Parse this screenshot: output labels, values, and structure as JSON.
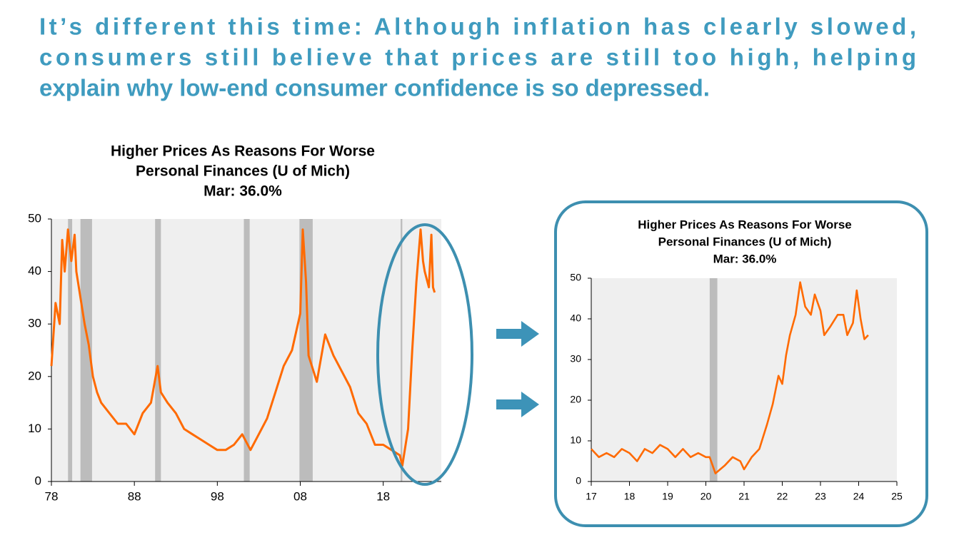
{
  "headline": [
    "It’s different this time:  Although inflation has clearly slowed,",
    "consumers still believe that prices are still too high, helping",
    "explain why low-end consumer confidence is so depressed."
  ],
  "chart_data": [
    {
      "type": "line",
      "title": [
        "Higher Prices As Reasons For Worse",
        "Personal Finances (U of Mich)",
        "Mar: 36.0%"
      ],
      "color": "#ff6a00",
      "x": [
        1978,
        1978.5,
        1979,
        1979.3,
        1979.6,
        1980,
        1980.4,
        1980.8,
        1981,
        1981.5,
        1982,
        1982.5,
        1983,
        1983.5,
        1984,
        1985,
        1986,
        1987,
        1988,
        1989,
        1990,
        1990.8,
        1991.2,
        1992,
        1993,
        1994,
        1995,
        1996,
        1997,
        1998,
        1999,
        2000,
        2001,
        2002,
        2003,
        2004,
        2005,
        2006,
        2007,
        2008,
        2008.3,
        2008.7,
        2009,
        2010,
        2011,
        2012,
        2013,
        2014,
        2015,
        2016,
        2017,
        2018,
        2019,
        2020,
        2020.3,
        2021,
        2021.5,
        2022,
        2022.5,
        2022.8,
        2023,
        2023.5,
        2023.8,
        2024,
        2024.2
      ],
      "values": [
        22,
        34,
        30,
        46,
        40,
        48,
        42,
        47,
        40,
        35,
        30,
        26,
        20,
        17,
        15,
        13,
        11,
        11,
        9,
        13,
        15,
        22,
        17,
        15,
        13,
        10,
        9,
        8,
        7,
        6,
        6,
        7,
        9,
        6,
        9,
        12,
        17,
        22,
        25,
        32,
        48,
        38,
        24,
        19,
        28,
        24,
        21,
        18,
        13,
        11,
        7,
        7,
        6,
        5,
        3,
        10,
        25,
        38,
        48,
        42,
        40,
        37,
        47,
        37,
        36
      ],
      "recessions": [
        [
          1980,
          1980.5
        ],
        [
          1981.5,
          1982.9
        ],
        [
          1990.5,
          1991.2
        ],
        [
          2001.2,
          2001.9
        ],
        [
          2007.9,
          2009.5
        ],
        [
          2020.1,
          2020.3
        ]
      ],
      "xlim": [
        1978,
        2025
      ],
      "ylim": [
        0,
        50
      ],
      "yticks": [
        0,
        10,
        20,
        30,
        40,
        50
      ],
      "xticks": [
        {
          "value": 1978,
          "label": "78"
        },
        {
          "value": 1988,
          "label": "88"
        },
        {
          "value": 1998,
          "label": "98"
        },
        {
          "value": 2008,
          "label": "08"
        },
        {
          "value": 2018,
          "label": "18"
        }
      ]
    },
    {
      "type": "line",
      "title": [
        "Higher Prices As Reasons For Worse",
        "Personal Finances (U of Mich)",
        "Mar: 36.0%"
      ],
      "color": "#ff6a00",
      "x": [
        2017,
        2017.2,
        2017.4,
        2017.6,
        2017.8,
        2018,
        2018.2,
        2018.4,
        2018.6,
        2018.8,
        2019,
        2019.2,
        2019.4,
        2019.6,
        2019.8,
        2020,
        2020.1,
        2020.25,
        2020.5,
        2020.7,
        2020.9,
        2021,
        2021.2,
        2021.4,
        2021.6,
        2021.75,
        2021.9,
        2022,
        2022.1,
        2022.2,
        2022.35,
        2022.47,
        2022.6,
        2022.75,
        2022.85,
        2023,
        2023.1,
        2023.25,
        2023.45,
        2023.6,
        2023.7,
        2023.85,
        2023.95,
        2024.05,
        2024.15,
        2024.25
      ],
      "values": [
        8,
        6,
        7,
        6,
        8,
        7,
        5,
        8,
        7,
        9,
        8,
        6,
        8,
        6,
        7,
        6,
        6,
        2,
        4,
        6,
        5,
        3,
        6,
        8,
        14,
        19,
        26,
        24,
        31,
        36,
        41,
        49,
        43,
        41,
        46,
        42,
        36,
        38,
        41,
        41,
        36,
        39,
        47,
        40,
        35,
        36
      ],
      "recessions": [
        [
          2020.1,
          2020.3
        ]
      ],
      "xlim": [
        2017,
        2025
      ],
      "ylim": [
        0,
        50
      ],
      "yticks": [
        0,
        10,
        20,
        30,
        40,
        50
      ],
      "xticks": [
        {
          "value": 2017,
          "label": "17"
        },
        {
          "value": 2018,
          "label": "18"
        },
        {
          "value": 2019,
          "label": "19"
        },
        {
          "value": 2020,
          "label": "20"
        },
        {
          "value": 2021,
          "label": "21"
        },
        {
          "value": 2022,
          "label": "22"
        },
        {
          "value": 2023,
          "label": "23"
        },
        {
          "value": 2024,
          "label": "24"
        },
        {
          "value": 2025,
          "label": "25"
        }
      ]
    }
  ]
}
